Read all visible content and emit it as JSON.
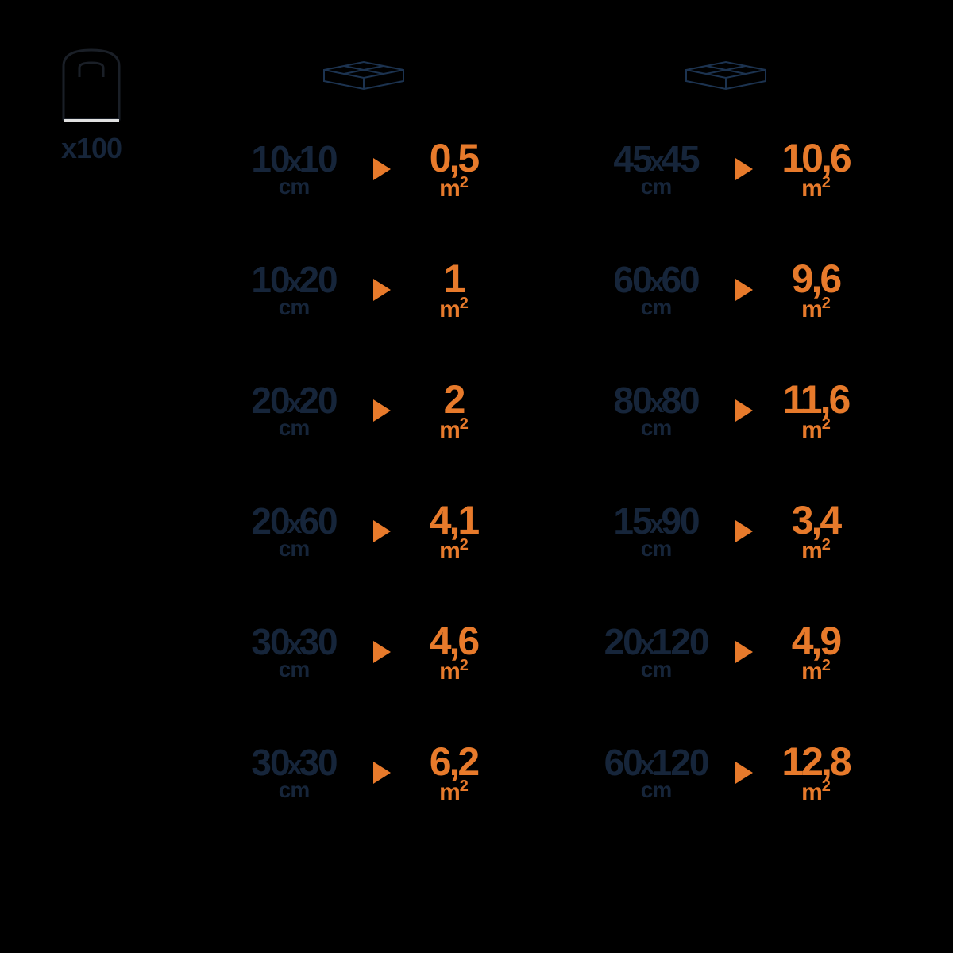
{
  "colors": {
    "background": "#000000",
    "foreground_dim": "#16253a",
    "foreground_dim_icon": "#1c3350",
    "sack_line": "#1a1f27",
    "sack_underline": "#e0e0e0",
    "accent": "#e77a2b"
  },
  "sack": {
    "label": "x100"
  },
  "size_unit": "cm",
  "area_unit_base": "m",
  "area_unit_sup": "2",
  "columns": [
    {
      "rows": [
        {
          "w": "10",
          "h": "10",
          "area": "0,5"
        },
        {
          "w": "10",
          "h": "20",
          "area": "1"
        },
        {
          "w": "20",
          "h": "20",
          "area": "2"
        },
        {
          "w": "20",
          "h": "60",
          "area": "4,1"
        },
        {
          "w": "30",
          "h": "30",
          "area": "4,6"
        },
        {
          "w": "30",
          "h": "30",
          "area": "6,2"
        }
      ]
    },
    {
      "rows": [
        {
          "w": "45",
          "h": "45",
          "area": "10,6"
        },
        {
          "w": "60",
          "h": "60",
          "area": "9,6"
        },
        {
          "w": "80",
          "h": "80",
          "area": "11,6"
        },
        {
          "w": "15",
          "h": "90",
          "area": "3,4"
        },
        {
          "w": "20",
          "h": "120",
          "area": "4,9"
        },
        {
          "w": "60",
          "h": "120",
          "area": "12,8"
        }
      ]
    }
  ]
}
